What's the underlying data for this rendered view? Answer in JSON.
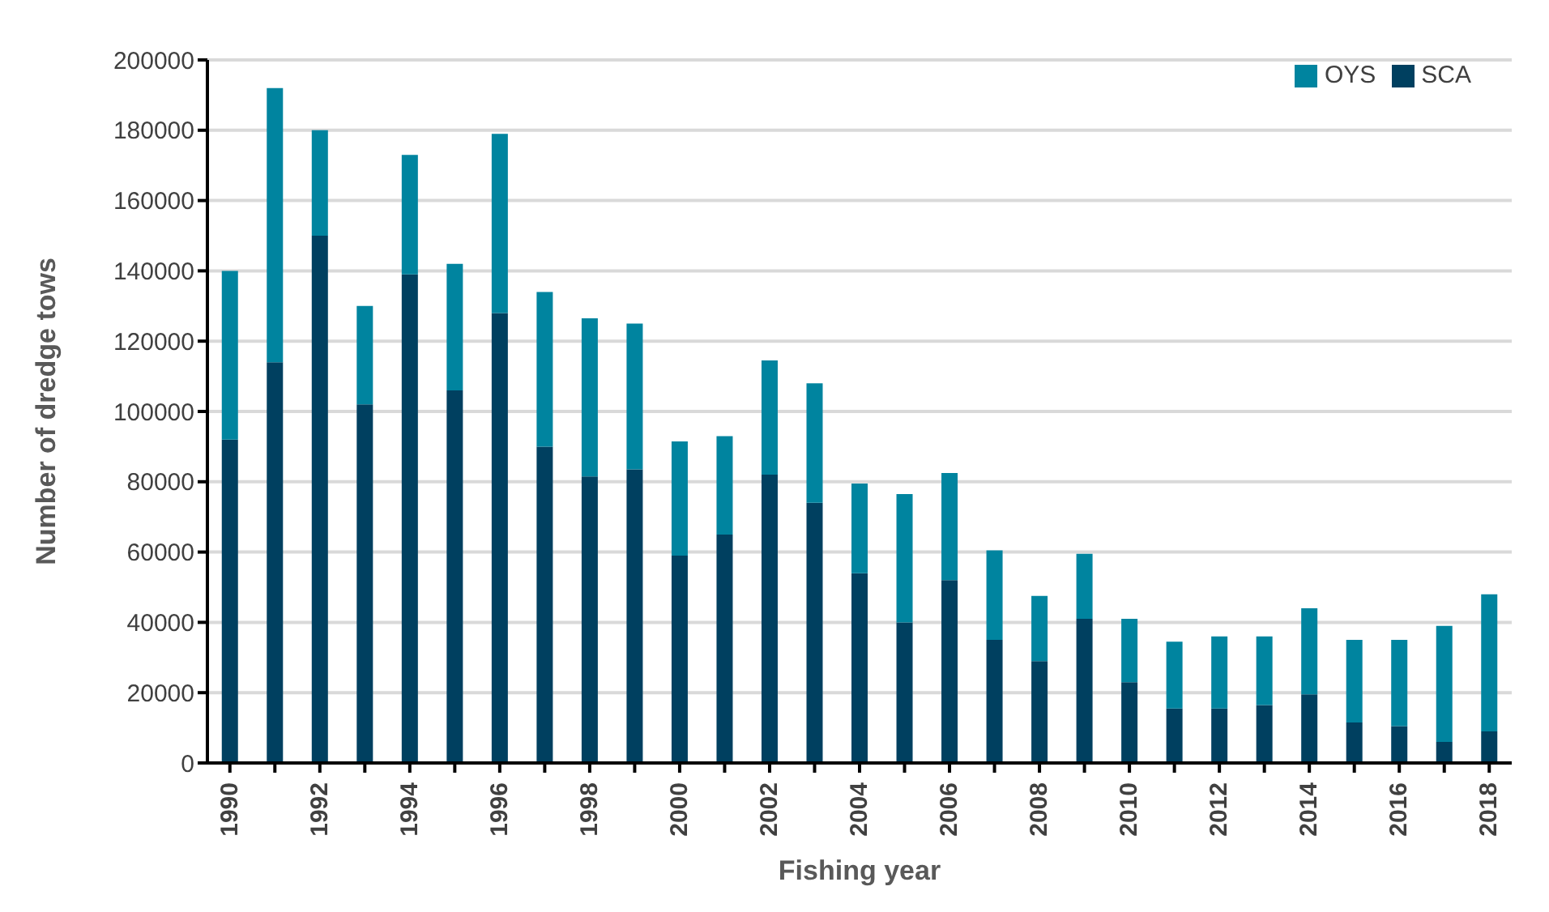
{
  "chart_data": {
    "type": "bar",
    "stacked": true,
    "xlabel": "Fishing year",
    "ylabel": "Number of dredge tows",
    "categories": [
      "1990",
      null,
      "1992",
      null,
      "1994",
      null,
      "1996",
      null,
      "1998",
      null,
      "2000",
      null,
      "2002",
      null,
      "2004",
      null,
      "2006",
      null,
      "2008",
      null,
      "2010",
      null,
      "2012",
      null,
      "2014",
      null,
      "2016",
      null,
      "2018"
    ],
    "series": [
      {
        "name": "SCA",
        "color": "#004060",
        "values": [
          92000,
          114000,
          150000,
          102000,
          139000,
          106000,
          128000,
          90000,
          81500,
          83500,
          59000,
          65000,
          82000,
          74000,
          54000,
          40000,
          52000,
          35000,
          29000,
          41000,
          23000,
          15500,
          15500,
          16500,
          19500,
          11500,
          10500,
          6000,
          9000
        ]
      },
      {
        "name": "OYS",
        "color": "#00849f",
        "values": [
          48000,
          78000,
          30000,
          28000,
          34000,
          36000,
          51000,
          44000,
          45000,
          41500,
          32500,
          28000,
          32500,
          34000,
          25500,
          36500,
          30500,
          25500,
          18500,
          18500,
          18000,
          19000,
          20500,
          19500,
          24500,
          23500,
          24500,
          33000,
          39000
        ]
      }
    ],
    "ylim": [
      0,
      200000
    ],
    "yticks": [
      0,
      20000,
      40000,
      60000,
      80000,
      100000,
      120000,
      140000,
      160000,
      180000,
      200000
    ],
    "grid": "y",
    "legend": "top right"
  }
}
